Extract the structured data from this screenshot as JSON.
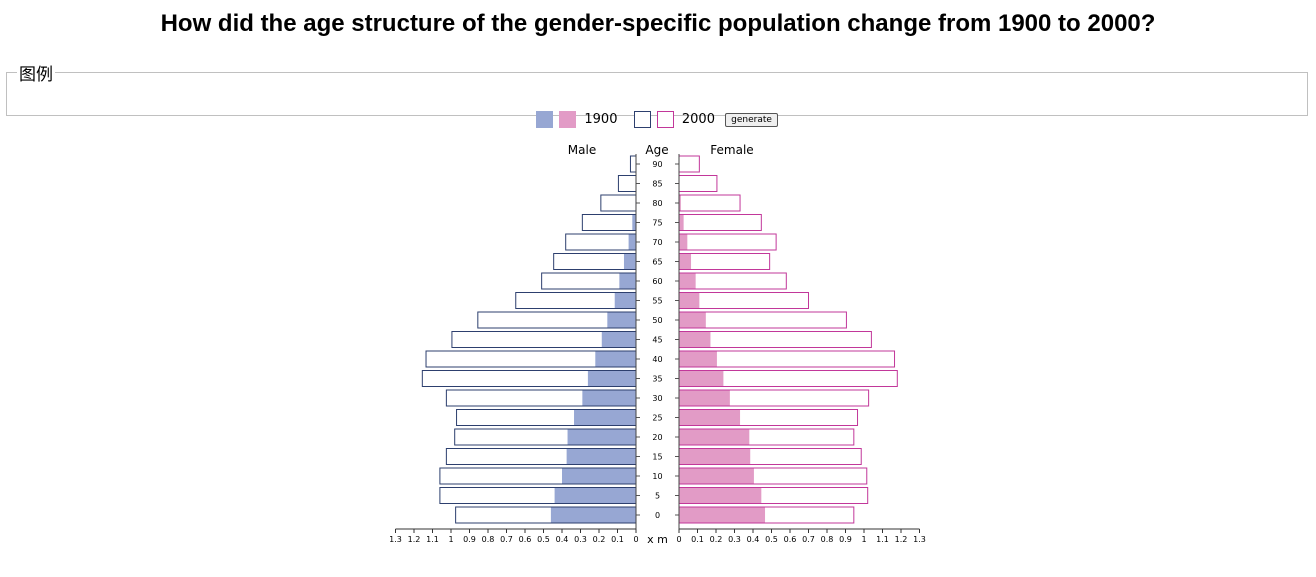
{
  "title": "How did the age structure of the gender-specific population change from 1900 to 2000?",
  "legend": {
    "heading": "图例",
    "label_1900": "1900",
    "label_2000": "2000",
    "generate_label": "generate"
  },
  "colors": {
    "male_1900": "#97a7d3",
    "female_1900": "#e29bc6",
    "male_2000_stroke": "#2d3f6e",
    "female_2000_stroke": "#c2379a",
    "axis": "#333333"
  },
  "chart_data": {
    "type": "bar",
    "orientation": "horizontal-pyramid",
    "header_left": "Male",
    "header_center": "Age",
    "header_right": "Female",
    "center_axis_label": "x m",
    "xlim": [
      0,
      1.3
    ],
    "ticks": [
      0,
      0.1,
      0.2,
      0.3,
      0.4,
      0.5,
      0.6,
      0.7,
      0.8,
      0.9,
      1,
      1.1,
      1.2,
      1.3
    ],
    "tick_labels": [
      "0",
      "0.1",
      "0.2",
      "0.3",
      "0.4",
      "0.5",
      "0.6",
      "0.7",
      "0.8",
      "0.9",
      "1",
      "1.1",
      "1.2",
      "1.3"
    ],
    "categories": [
      "90",
      "85",
      "80",
      "75",
      "70",
      "65",
      "60",
      "55",
      "50",
      "45",
      "40",
      "35",
      "30",
      "25",
      "20",
      "15",
      "10",
      "5",
      "0"
    ],
    "series": [
      {
        "name": "1900",
        "side": "Male",
        "values": [
          0.002,
          0.002,
          0.003,
          0.02,
          0.04,
          0.065,
          0.09,
          0.115,
          0.155,
          0.185,
          0.22,
          0.26,
          0.29,
          0.335,
          0.37,
          0.375,
          0.4,
          0.44,
          0.46
        ]
      },
      {
        "name": "2000",
        "side": "Male",
        "values": [
          0.03,
          0.095,
          0.19,
          0.29,
          0.38,
          0.445,
          0.51,
          0.65,
          0.855,
          0.995,
          1.135,
          1.155,
          1.025,
          0.97,
          0.98,
          1.025,
          1.06,
          1.06,
          0.975
        ]
      },
      {
        "name": "1900",
        "side": "Female",
        "values": [
          0.002,
          0.003,
          0.01,
          0.025,
          0.045,
          0.065,
          0.09,
          0.11,
          0.145,
          0.17,
          0.205,
          0.24,
          0.275,
          0.33,
          0.38,
          0.385,
          0.405,
          0.445,
          0.465
        ]
      },
      {
        "name": "2000",
        "side": "Female",
        "values": [
          0.11,
          0.205,
          0.33,
          0.445,
          0.525,
          0.49,
          0.58,
          0.7,
          0.905,
          1.04,
          1.165,
          1.18,
          1.025,
          0.965,
          0.945,
          0.985,
          1.015,
          1.02,
          0.945
        ]
      }
    ]
  }
}
